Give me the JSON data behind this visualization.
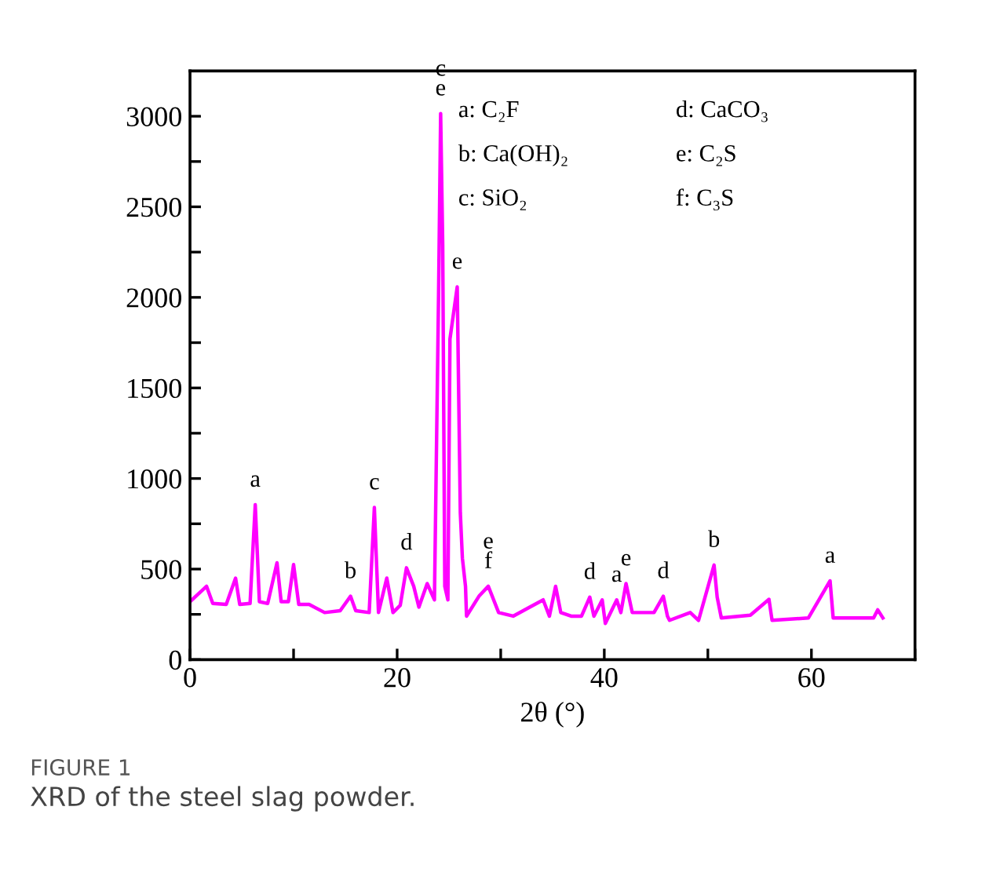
{
  "chart_data": {
    "type": "line",
    "title": "FIGURE 1",
    "subtitle": "XRD of the steel slag powder.",
    "xlabel": "2θ (°)",
    "x": [
      0.1,
      1.6,
      2.2,
      3.5,
      4.4,
      4.8,
      5.8,
      6.3,
      6.7,
      7.5,
      8.4,
      8.8,
      9.5,
      10.0,
      10.5,
      11.5,
      13.0,
      14.5,
      15.5,
      16.0,
      17.3,
      17.8,
      18.2,
      19.0,
      19.6,
      20.3,
      20.9,
      21.6,
      22.1,
      22.9,
      23.6,
      24.0,
      24.2,
      24.4,
      24.6,
      24.9,
      25.1,
      25.8,
      26.1,
      26.3,
      26.6,
      26.7,
      27.9,
      28.8,
      29.8,
      31.2,
      32.8,
      34.1,
      34.7,
      35.3,
      35.8,
      36.8,
      37.8,
      38.6,
      39.0,
      39.8,
      40.1,
      41.2,
      41.6,
      42.1,
      42.7,
      44.8,
      45.7,
      46.1,
      46.3,
      48.3,
      49.1,
      50.6,
      50.9,
      51.3,
      54.1,
      55.9,
      56.2,
      59.7,
      61.8,
      62.1,
      66.0,
      66.4,
      66.9
    ],
    "values": [
      325,
      405,
      310,
      305,
      450,
      305,
      310,
      855,
      320,
      310,
      535,
      320,
      320,
      525,
      305,
      305,
      260,
      270,
      350,
      270,
      260,
      840,
      260,
      450,
      260,
      300,
      507,
      405,
      290,
      420,
      330,
      2015,
      3015,
      2290,
      405,
      330,
      1770,
      2058,
      810,
      560,
      405,
      240,
      350,
      405,
      260,
      240,
      290,
      330,
      240,
      405,
      260,
      240,
      240,
      345,
      240,
      330,
      200,
      330,
      260,
      420,
      260,
      260,
      350,
      240,
      217,
      260,
      217,
      522,
      345,
      230,
      245,
      333,
      217,
      230,
      435,
      230,
      230,
      275,
      230
    ],
    "color": "#ff00ff",
    "line_style": "solid",
    "marker": "none",
    "grid": false,
    "legend": false,
    "xlim": [
      0,
      70
    ],
    "ylim": [
      0,
      3250
    ],
    "xticks": [
      0,
      {
        "value": 10,
        "label": null
      },
      20,
      {
        "value": 30,
        "label": null
      },
      40,
      {
        "value": 50,
        "label": null
      },
      60,
      {
        "value": 70,
        "label": null
      }
    ],
    "yticks": [
      0,
      {
        "value": 250,
        "label": null
      },
      500,
      {
        "value": 750,
        "label": null
      },
      1000,
      {
        "value": 1250,
        "label": null
      },
      1500,
      {
        "value": 1750,
        "label": null
      },
      2000,
      {
        "value": 2250,
        "label": null
      },
      2500,
      {
        "value": 2750,
        "label": null
      },
      3000
    ],
    "annotations": [
      {
        "text": "a",
        "x": 6.3,
        "y": 855
      },
      {
        "text": "b",
        "x": 15.5,
        "y": 350
      },
      {
        "text": "c",
        "x": 17.8,
        "y": 840
      },
      {
        "text": "d",
        "x": 20.9,
        "y": 507
      },
      {
        "text": "e",
        "x": 24.2,
        "y": 3015
      },
      {
        "text": "c",
        "x": 24.2,
        "y": 3015
      },
      {
        "text": "e",
        "x": 25.8,
        "y": 2058
      },
      {
        "text": "f",
        "x": 28.8,
        "y": 405
      },
      {
        "text": "e",
        "x": 28.8,
        "y": 405
      },
      {
        "text": "d",
        "x": 38.6,
        "y": 345
      },
      {
        "text": "a",
        "x": 41.2,
        "y": 330
      },
      {
        "text": "e",
        "x": 42.1,
        "y": 420
      },
      {
        "text": "d",
        "x": 45.7,
        "y": 350
      },
      {
        "text": "b",
        "x": 50.6,
        "y": 522
      },
      {
        "text": "a",
        "x": 61.8,
        "y": 435
      },
      "a: C₂F",
      "b: Ca(OH)₂",
      "c: SiO₂",
      "d: CaCO₃",
      "e: C₂S",
      "f: C₃S"
    ]
  }
}
